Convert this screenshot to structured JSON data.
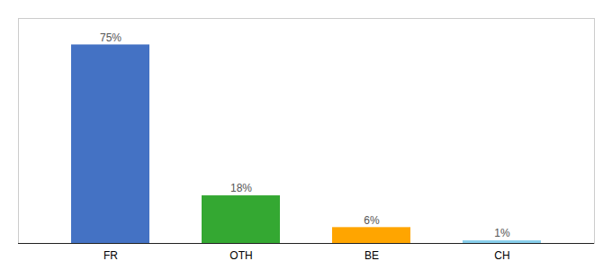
{
  "chart_data": {
    "type": "bar",
    "categories": [
      "FR",
      "OTH",
      "BE",
      "CH"
    ],
    "values": [
      75,
      18,
      6,
      1
    ],
    "value_labels": [
      "75%",
      "18%",
      "6%",
      "1%"
    ],
    "colors": [
      "#4472C4",
      "#34A832",
      "#FFA500",
      "#87CEEB"
    ],
    "ylim": [
      0,
      85
    ],
    "data_labels": true,
    "tick_labels": "x",
    "grid": false
  }
}
